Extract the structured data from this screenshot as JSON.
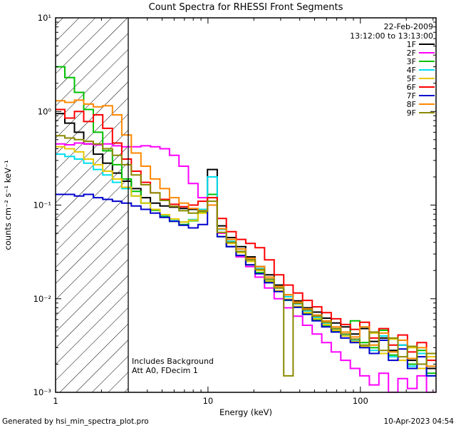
{
  "title": "Count Spectra for RHESSI Front Segments",
  "legend": {
    "date": "22-Feb-2009",
    "interval": "13:12:00 to 13:13:00",
    "text_color": "#d40000"
  },
  "annotations": {
    "line1": "Includes Background",
    "line2": "Att A0, FDecim 1"
  },
  "footer": {
    "left": "Generated by hsi_min_spectra_plot.pro",
    "right": "10-Apr-2023 04:54"
  },
  "chart_data": {
    "type": "line",
    "mode": "histogram-step",
    "title": "Count Spectra for RHESSI Front Segments",
    "xlabel": "Energy (keV)",
    "ylabel": "counts cm⁻² s⁻¹ keV⁻¹",
    "xscale": "log",
    "yscale": "log",
    "xlim": [
      1,
      313.8
    ],
    "ylim": [
      0.001,
      10
    ],
    "grid": false,
    "legend_position": "top-right-inside",
    "hatched_region_kev": [
      1,
      3
    ],
    "x_ticks": [
      {
        "v": 1,
        "label": "1"
      },
      {
        "v": 10,
        "label": "10"
      },
      {
        "v": 100,
        "label": "100"
      }
    ],
    "y_ticks": [
      {
        "v": 10,
        "label": "10¹"
      },
      {
        "v": 1,
        "label": "10⁰"
      },
      {
        "v": 0.1,
        "label": "10⁻¹"
      },
      {
        "v": 0.01,
        "label": "10⁻²"
      },
      {
        "v": 0.001,
        "label": "10⁻³"
      }
    ],
    "bin_edges_kev": [
      1.0,
      1.15,
      1.33,
      1.53,
      1.77,
      2.04,
      2.36,
      2.72,
      3.14,
      3.63,
      4.19,
      4.84,
      5.59,
      6.45,
      7.45,
      8.6,
      9.93,
      11.5,
      13.2,
      15.3,
      17.7,
      20.4,
      23.5,
      27.2,
      31.4,
      36.2,
      41.8,
      48.3,
      55.8,
      64.4,
      74.4,
      85.9,
      99.2,
      114.6,
      132.3,
      152.8,
      176.4,
      203.7,
      235.3,
      271.7,
      313.8
    ],
    "series": [
      {
        "name": "1F",
        "color": "#000000",
        "values": [
          0.95,
          0.75,
          0.6,
          0.45,
          0.35,
          0.28,
          0.22,
          0.18,
          0.15,
          0.12,
          0.105,
          0.098,
          0.095,
          0.092,
          0.09,
          0.088,
          0.24,
          0.06,
          0.045,
          0.036,
          0.028,
          0.022,
          0.018,
          0.014,
          0.011,
          0.0095,
          0.008,
          0.0072,
          0.0062,
          0.0055,
          0.005,
          0.0042,
          0.0048,
          0.0035,
          0.0038,
          0.0028,
          0.0032,
          0.0022,
          0.0026,
          0.0018
        ]
      },
      {
        "name": "2F",
        "color": "#ff00ff",
        "values": [
          0.45,
          0.44,
          0.46,
          0.45,
          0.44,
          0.45,
          0.43,
          0.42,
          0.42,
          0.43,
          0.42,
          0.4,
          0.34,
          0.26,
          0.17,
          0.12,
          0.1,
          0.05,
          0.036,
          0.028,
          0.022,
          0.017,
          0.013,
          0.01,
          0.008,
          0.0065,
          0.0052,
          0.0042,
          0.0034,
          0.0027,
          0.0022,
          0.0018,
          0.0015,
          0.0012,
          0.0016,
          0.001,
          0.0014,
          0.0011,
          0.0015,
          0.001
        ]
      },
      {
        "name": "3F",
        "color": "#00c000",
        "values": [
          3.0,
          2.3,
          1.6,
          1.05,
          0.6,
          0.38,
          0.27,
          0.19,
          0.14,
          0.105,
          0.088,
          0.076,
          0.067,
          0.062,
          0.068,
          0.085,
          0.13,
          0.046,
          0.036,
          0.029,
          0.023,
          0.019,
          0.015,
          0.012,
          0.0096,
          0.0081,
          0.0069,
          0.0059,
          0.0051,
          0.0045,
          0.004,
          0.0058,
          0.0034,
          0.003,
          0.0046,
          0.0025,
          0.0036,
          0.002,
          0.0028,
          0.0016
        ]
      },
      {
        "name": "4F",
        "color": "#00dff0",
        "values": [
          0.35,
          0.33,
          0.31,
          0.28,
          0.24,
          0.21,
          0.175,
          0.15,
          0.125,
          0.105,
          0.09,
          0.078,
          0.07,
          0.066,
          0.07,
          0.09,
          0.2,
          0.055,
          0.041,
          0.032,
          0.026,
          0.021,
          0.016,
          0.013,
          0.0105,
          0.0088,
          0.0074,
          0.0063,
          0.0054,
          0.0047,
          0.0041,
          0.0036,
          0.005,
          0.0028,
          0.004,
          0.0024,
          0.0032,
          0.0019,
          0.0026,
          0.0015
        ]
      },
      {
        "name": "5F",
        "color": "#e8c800",
        "values": [
          0.42,
          0.4,
          0.37,
          0.31,
          0.27,
          0.23,
          0.19,
          0.155,
          0.125,
          0.105,
          0.09,
          0.079,
          0.071,
          0.066,
          0.069,
          0.082,
          0.12,
          0.051,
          0.039,
          0.031,
          0.025,
          0.02,
          0.0155,
          0.0122,
          0.0099,
          0.0083,
          0.0071,
          0.0061,
          0.0053,
          0.0046,
          0.004,
          0.0035,
          0.0031,
          0.0043,
          0.0026,
          0.0037,
          0.0022,
          0.003,
          0.0018,
          0.0024
        ]
      },
      {
        "name": "6F",
        "color": "#ff0000",
        "values": [
          1.05,
          0.85,
          1.0,
          0.78,
          0.92,
          0.66,
          0.46,
          0.31,
          0.23,
          0.175,
          0.135,
          0.115,
          0.102,
          0.096,
          0.1,
          0.11,
          0.12,
          0.072,
          0.052,
          0.043,
          0.039,
          0.035,
          0.026,
          0.018,
          0.014,
          0.0115,
          0.0096,
          0.0082,
          0.0071,
          0.0061,
          0.0053,
          0.0047,
          0.0056,
          0.0038,
          0.0048,
          0.0032,
          0.0041,
          0.0027,
          0.0034,
          0.0022
        ]
      },
      {
        "name": "7F",
        "color": "#0000cd",
        "values": [
          0.13,
          0.13,
          0.125,
          0.13,
          0.12,
          0.115,
          0.11,
          0.105,
          0.098,
          0.09,
          0.082,
          0.074,
          0.067,
          0.061,
          0.057,
          0.062,
          0.1,
          0.046,
          0.036,
          0.029,
          0.023,
          0.0185,
          0.0148,
          0.0119,
          0.0097,
          0.0081,
          0.0068,
          0.0058,
          0.005,
          0.0044,
          0.0038,
          0.0034,
          0.003,
          0.0026,
          0.0036,
          0.0022,
          0.0029,
          0.0018,
          0.0024,
          0.0015
        ]
      },
      {
        "name": "8F",
        "color": "#ff8800",
        "values": [
          1.3,
          1.25,
          1.32,
          1.2,
          1.12,
          1.15,
          0.92,
          0.56,
          0.36,
          0.26,
          0.19,
          0.15,
          0.12,
          0.105,
          0.092,
          0.087,
          0.1,
          0.056,
          0.043,
          0.034,
          0.027,
          0.022,
          0.017,
          0.0135,
          0.011,
          0.0092,
          0.0078,
          0.0067,
          0.0058,
          0.005,
          0.0044,
          0.0039,
          0.005,
          0.0032,
          0.0043,
          0.0027,
          0.0036,
          0.0023,
          0.003,
          0.0019
        ]
      },
      {
        "name": "9F",
        "color": "#8a8a00",
        "values": [
          0.55,
          0.52,
          0.5,
          0.48,
          0.45,
          0.4,
          0.34,
          0.27,
          0.21,
          0.165,
          0.135,
          0.112,
          0.097,
          0.087,
          0.082,
          0.086,
          0.11,
          0.051,
          0.04,
          0.032,
          0.026,
          0.0205,
          0.0162,
          0.013,
          0.0015,
          0.0089,
          0.0076,
          0.0065,
          0.0056,
          0.0048,
          0.0042,
          0.0037,
          0.0032,
          0.0044,
          0.0028,
          0.0038,
          0.0024,
          0.0031,
          0.002,
          0.0026
        ]
      }
    ]
  }
}
